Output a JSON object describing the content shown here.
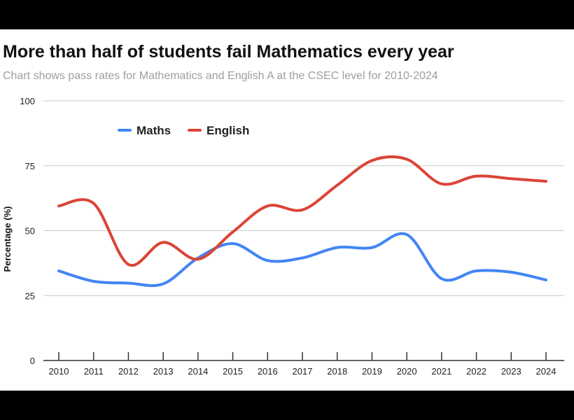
{
  "title": "More than half of students fail Mathematics every year",
  "subtitle": "Chart shows pass rates for Mathematics and English A at the CSEC level for 2010-2024",
  "chart_data": {
    "type": "line",
    "categories": [
      "2010",
      "2011",
      "2012",
      "2013",
      "2014",
      "2015",
      "2016",
      "2017",
      "2018",
      "2019",
      "2020",
      "2021",
      "2022",
      "2023",
      "2024"
    ],
    "series": [
      {
        "name": "Maths",
        "color": "#4285f4",
        "values": [
          34.5,
          30.5,
          29.8,
          29.5,
          39.5,
          45,
          38.5,
          39.5,
          43.5,
          43.5,
          48.5,
          31.5,
          34.5,
          34,
          31
        ]
      },
      {
        "name": "English",
        "color": "#db4437",
        "values": [
          59.5,
          60.5,
          37,
          45.5,
          39,
          49.5,
          59.5,
          58,
          67.5,
          77,
          77.5,
          68,
          71,
          70,
          69
        ]
      }
    ],
    "xlabel": "",
    "ylabel": "Percentage (%)",
    "ylim": [
      0,
      100
    ],
    "yticks": [
      0,
      25,
      50,
      75,
      100
    ],
    "grid": true,
    "legend": "top-left"
  }
}
